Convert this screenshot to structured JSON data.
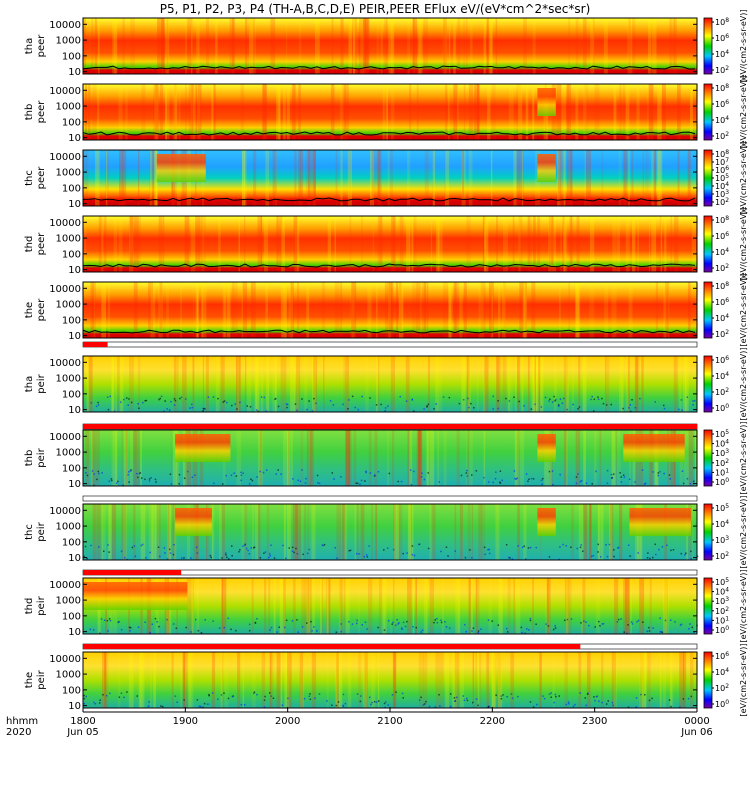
{
  "title": "P5, P1, P2, P3, P4 (TH-A,B,C,D,E) PEIR,PEER EFlux eV/(eV*cm^2*sec*sr)",
  "colors": {
    "background": "#ffffff",
    "flag_red": "#ff0000",
    "flag_black": "#000000"
  },
  "x_axis": {
    "row_label_1": "hhmm",
    "row_label_2": "2020",
    "ticks": [
      "1800",
      "1900",
      "2000",
      "2100",
      "2200",
      "2300",
      "0000"
    ],
    "date_labels": [
      "Jun 05",
      "Jun 06"
    ]
  },
  "chart_data": [
    {
      "type": "heatmap",
      "ylabel_line1": "tha",
      "ylabel_line2": "peer",
      "y_ticks": [
        "10",
        "100",
        "1000",
        "10000"
      ],
      "colorbar_ticks": [
        "10^2",
        "10^4",
        "10^6",
        "10^8"
      ],
      "colorbar_unit": "[eV/(cm2-s-sr-eV)]",
      "y_scale": "log"
    },
    {
      "type": "heatmap",
      "ylabel_line1": "thb",
      "ylabel_line2": "peer",
      "y_ticks": [
        "10",
        "100",
        "1000",
        "10000"
      ],
      "colorbar_ticks": [
        "10^2",
        "10^4",
        "10^6",
        "10^8"
      ],
      "colorbar_unit": "[eV/(cm2-s-sr-eV)]",
      "y_scale": "log"
    },
    {
      "type": "heatmap",
      "ylabel_line1": "thc",
      "ylabel_line2": "peer",
      "y_ticks": [
        "10",
        "100",
        "1000",
        "10000"
      ],
      "colorbar_ticks": [
        "10^2",
        "10^3",
        "10^4",
        "10^5",
        "10^6",
        "10^7",
        "10^8"
      ],
      "colorbar_unit": "[eV/(cm2-s-sr-eV)]",
      "y_scale": "log"
    },
    {
      "type": "heatmap",
      "ylabel_line1": "thd",
      "ylabel_line2": "peer",
      "y_ticks": [
        "10",
        "100",
        "1000",
        "10000"
      ],
      "colorbar_ticks": [
        "10^2",
        "10^4",
        "10^6",
        "10^8"
      ],
      "colorbar_unit": "[eV/(cm2-s-sr-eV)]",
      "y_scale": "log"
    },
    {
      "type": "heatmap",
      "ylabel_line1": "the",
      "ylabel_line2": "peer",
      "y_ticks": [
        "10",
        "100",
        "1000",
        "10000"
      ],
      "colorbar_ticks": [
        "10^2",
        "10^4",
        "10^6",
        "10^8"
      ],
      "colorbar_unit": "[eV/(cm2-s-sr-eV)]",
      "y_scale": "log"
    },
    {
      "type": "heatmap",
      "ylabel_line1": "tha",
      "ylabel_line2": "peir",
      "y_ticks": [
        "10",
        "100",
        "1000",
        "10000"
      ],
      "colorbar_ticks": [
        "10^0",
        "10^2",
        "10^4",
        "10^6"
      ],
      "colorbar_unit": "[eV/(cm2-s-sr-eV)]",
      "y_scale": "log"
    },
    {
      "type": "heatmap",
      "ylabel_line1": "thb",
      "ylabel_line2": "peir",
      "y_ticks": [
        "10",
        "100",
        "1000",
        "10000"
      ],
      "colorbar_ticks": [
        "10^0",
        "10^1",
        "10^2",
        "10^3",
        "10^4",
        "10^5"
      ],
      "colorbar_unit": "[eV/(cm2-s-sr-eV)]",
      "y_scale": "log"
    },
    {
      "type": "heatmap",
      "ylabel_line1": "thc",
      "ylabel_line2": "peir",
      "y_ticks": [
        "10",
        "100",
        "1000",
        "10000"
      ],
      "colorbar_ticks": [
        "10^2",
        "10^3",
        "10^4",
        "10^5"
      ],
      "colorbar_unit": "[eV/(cm2-s-sr-eV)]",
      "y_scale": "log"
    },
    {
      "type": "heatmap",
      "ylabel_line1": "thd",
      "ylabel_line2": "peir",
      "y_ticks": [
        "10",
        "100",
        "1000",
        "10000"
      ],
      "colorbar_ticks": [
        "10^0",
        "10^1",
        "10^2",
        "10^3",
        "10^4",
        "10^5"
      ],
      "colorbar_unit": "[eV/(cm2-s-sr-eV)]",
      "y_scale": "log"
    },
    {
      "type": "heatmap",
      "ylabel_line1": "the",
      "ylabel_line2": "peir",
      "y_ticks": [
        "10",
        "100",
        "1000",
        "10000"
      ],
      "colorbar_ticks": [
        "10^0",
        "10^2",
        "10^4",
        "10^6"
      ],
      "colorbar_unit": "[eV/(cm2-s-sr-eV)]",
      "y_scale": "log"
    }
  ]
}
